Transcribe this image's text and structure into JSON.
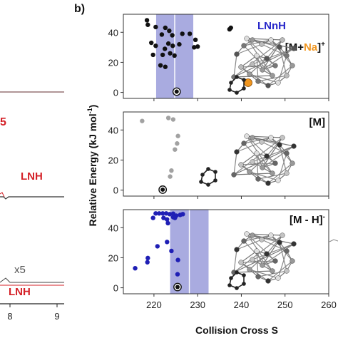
{
  "panel_label": "b)",
  "ylabel": "Relative Energy (kJ mol",
  "ylabel_sup": "-1",
  "ylabel_close": ")",
  "xlabel": "Collision Cross S",
  "x_ticks": [
    "220",
    "230",
    "240",
    "250",
    "260"
  ],
  "y_ticks": [
    "0",
    "20",
    "40"
  ],
  "left_panel": {
    "x_ticks": [
      "8",
      "9"
    ],
    "labels": [
      {
        "text": "LNH",
        "color": "#d42027"
      },
      {
        "text": "x5",
        "color": "#555555"
      },
      {
        "text": "LNH",
        "color": "#d42027"
      },
      {
        "text": "5",
        "color": "#d42027"
      }
    ]
  },
  "colors": {
    "band": "#a9abe0",
    "black": "#111111",
    "gray": "#a2a2a2",
    "blue": "#1f1fb5",
    "orange": "#f0951e",
    "red": "#d42027"
  },
  "chart_data": [
    {
      "type": "scatter",
      "title": "LNnH",
      "title_color": "#2727c9",
      "species_label": {
        "prefix": "[M+",
        "highlight": "Na",
        "suffix": "]",
        "sup": "+"
      },
      "xlim": [
        213,
        260
      ],
      "ylim": [
        -4,
        52
      ],
      "band": [
        220.5,
        229
      ],
      "series": [
        {
          "color": "#111111",
          "points": [
            [
              218.4,
              48
            ],
            [
              218.6,
              45
            ],
            [
              220.4,
              43.5
            ],
            [
              221.8,
              38.5
            ],
            [
              222.6,
              43
            ],
            [
              223.5,
              41
            ],
            [
              224.2,
              38
            ],
            [
              226.5,
              39
            ],
            [
              228.2,
              39
            ],
            [
              229.5,
              35
            ],
            [
              237.3,
              42
            ],
            [
              237.6,
              43
            ],
            [
              219.4,
              33
            ],
            [
              220.4,
              31
            ],
            [
              222.5,
              29
            ],
            [
              223.3,
              32.5
            ],
            [
              224.3,
              31
            ],
            [
              225.8,
              32
            ],
            [
              229.2,
              30
            ],
            [
              230.0,
              30.5
            ],
            [
              219.8,
              25
            ],
            [
              222.0,
              25
            ],
            [
              223.7,
              26
            ],
            [
              224.7,
              24.5
            ],
            [
              221.5,
              18
            ],
            [
              222.6,
              17
            ]
          ]
        },
        {
          "color": "#111111",
          "ringed": [
            [
              225.2,
              0.5
            ]
          ]
        }
      ]
    },
    {
      "type": "scatter",
      "title": "",
      "species_label": {
        "prefix": "[M]",
        "highlight": "",
        "suffix": "",
        "sup": ""
      },
      "xlim": [
        213,
        260
      ],
      "ylim": [
        -4,
        52
      ],
      "series": [
        {
          "color": "#a2a2a2",
          "points": [
            [
              217.3,
              46
            ],
            [
              223.3,
              48
            ],
            [
              224.4,
              47
            ],
            [
              225.5,
              36
            ],
            [
              225.3,
              31
            ],
            [
              224.8,
              27
            ],
            [
              224.0,
              13
            ],
            [
              223.7,
              9
            ]
          ]
        },
        {
          "color": "#111111",
          "ringed": [
            [
              222.0,
              0.3
            ]
          ]
        }
      ]
    },
    {
      "type": "scatter",
      "title": "",
      "species_label": {
        "prefix": "[M - H]",
        "highlight": "",
        "suffix": "",
        "sup": "-"
      },
      "xlim": [
        213,
        260
      ],
      "ylim": [
        -4,
        52
      ],
      "band": [
        223.7,
        232.5
      ],
      "series": [
        {
          "color": "#1f1fb5",
          "points": [
            [
              220.4,
              49.5
            ],
            [
              221.2,
              49.5
            ],
            [
              222.0,
              49.5
            ],
            [
              222.8,
              49.5
            ],
            [
              223.6,
              49
            ],
            [
              224.4,
              49.3
            ],
            [
              225.1,
              48
            ],
            [
              226.0,
              48.5
            ],
            [
              226.6,
              49
            ],
            [
              219.8,
              46.5
            ],
            [
              222.2,
              46.5
            ],
            [
              223.0,
              45.5
            ],
            [
              224.4,
              47
            ],
            [
              224.8,
              46.5
            ],
            [
              223.2,
              43
            ],
            [
              215.7,
              13
            ],
            [
              218.5,
              17
            ],
            [
              218.6,
              19.8
            ],
            [
              220.8,
              27.6
            ],
            [
              223.0,
              30.5
            ],
            [
              224.0,
              24.5
            ],
            [
              225.5,
              18.5
            ],
            [
              225.4,
              9
            ]
          ]
        },
        {
          "color": "#111111",
          "ringed": [
            [
              225.4,
              0.5
            ]
          ]
        }
      ]
    }
  ]
}
